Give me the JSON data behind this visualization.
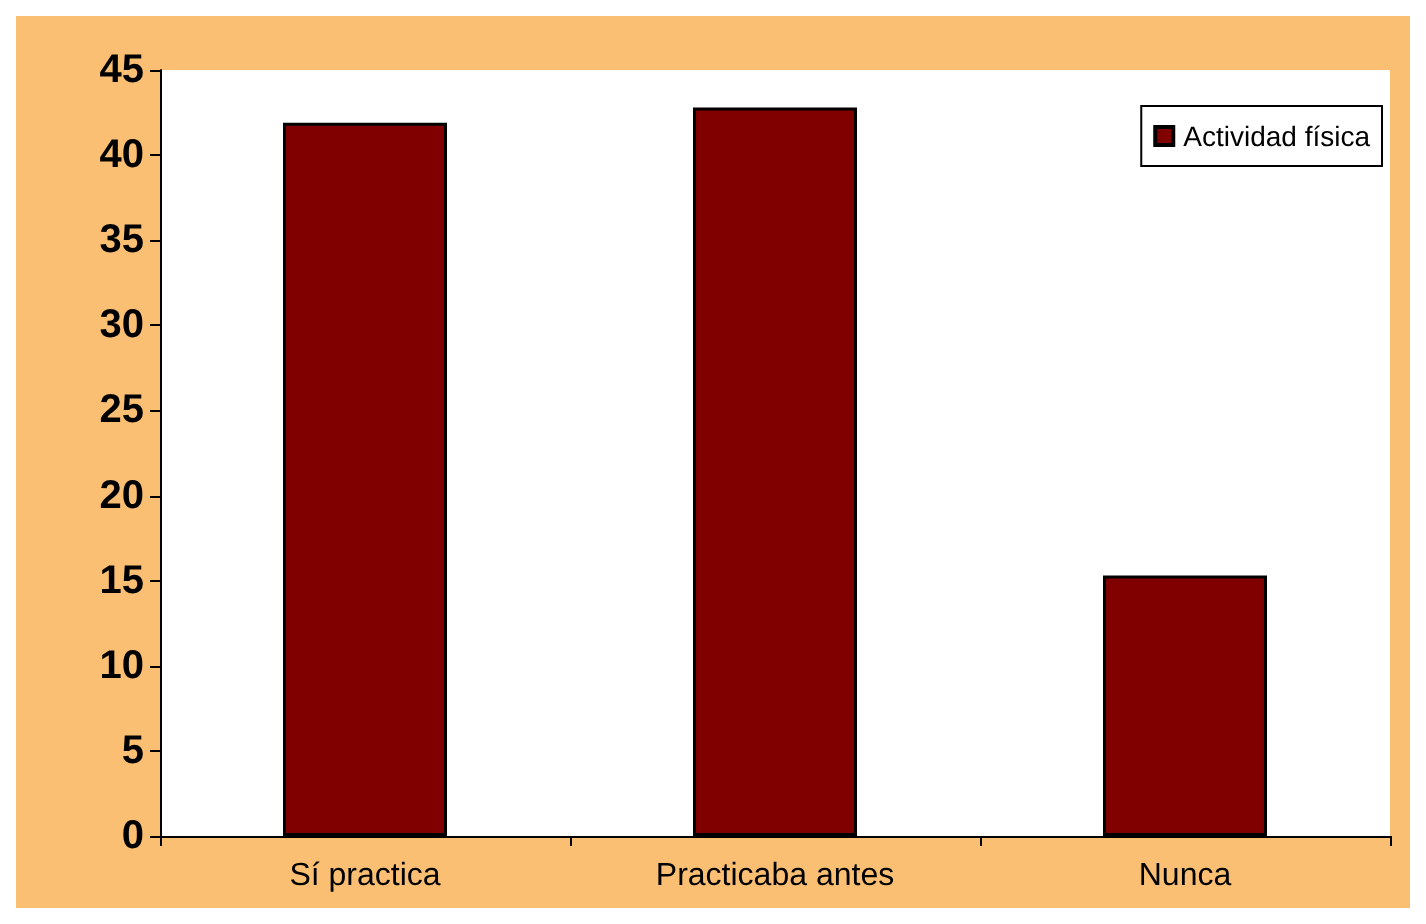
{
  "chart_data": {
    "type": "bar",
    "categories": [
      "Sí practica",
      "Practicaba antes",
      "Nunca"
    ],
    "series": [
      {
        "name": "Actividad física",
        "color": "#800000",
        "values": [
          41.9,
          42.8,
          15.3
        ]
      }
    ],
    "ylim": [
      0,
      45
    ],
    "yticks": [
      0,
      5,
      10,
      15,
      20,
      25,
      30,
      35,
      40,
      45
    ],
    "grid": false,
    "legend": "top right"
  }
}
